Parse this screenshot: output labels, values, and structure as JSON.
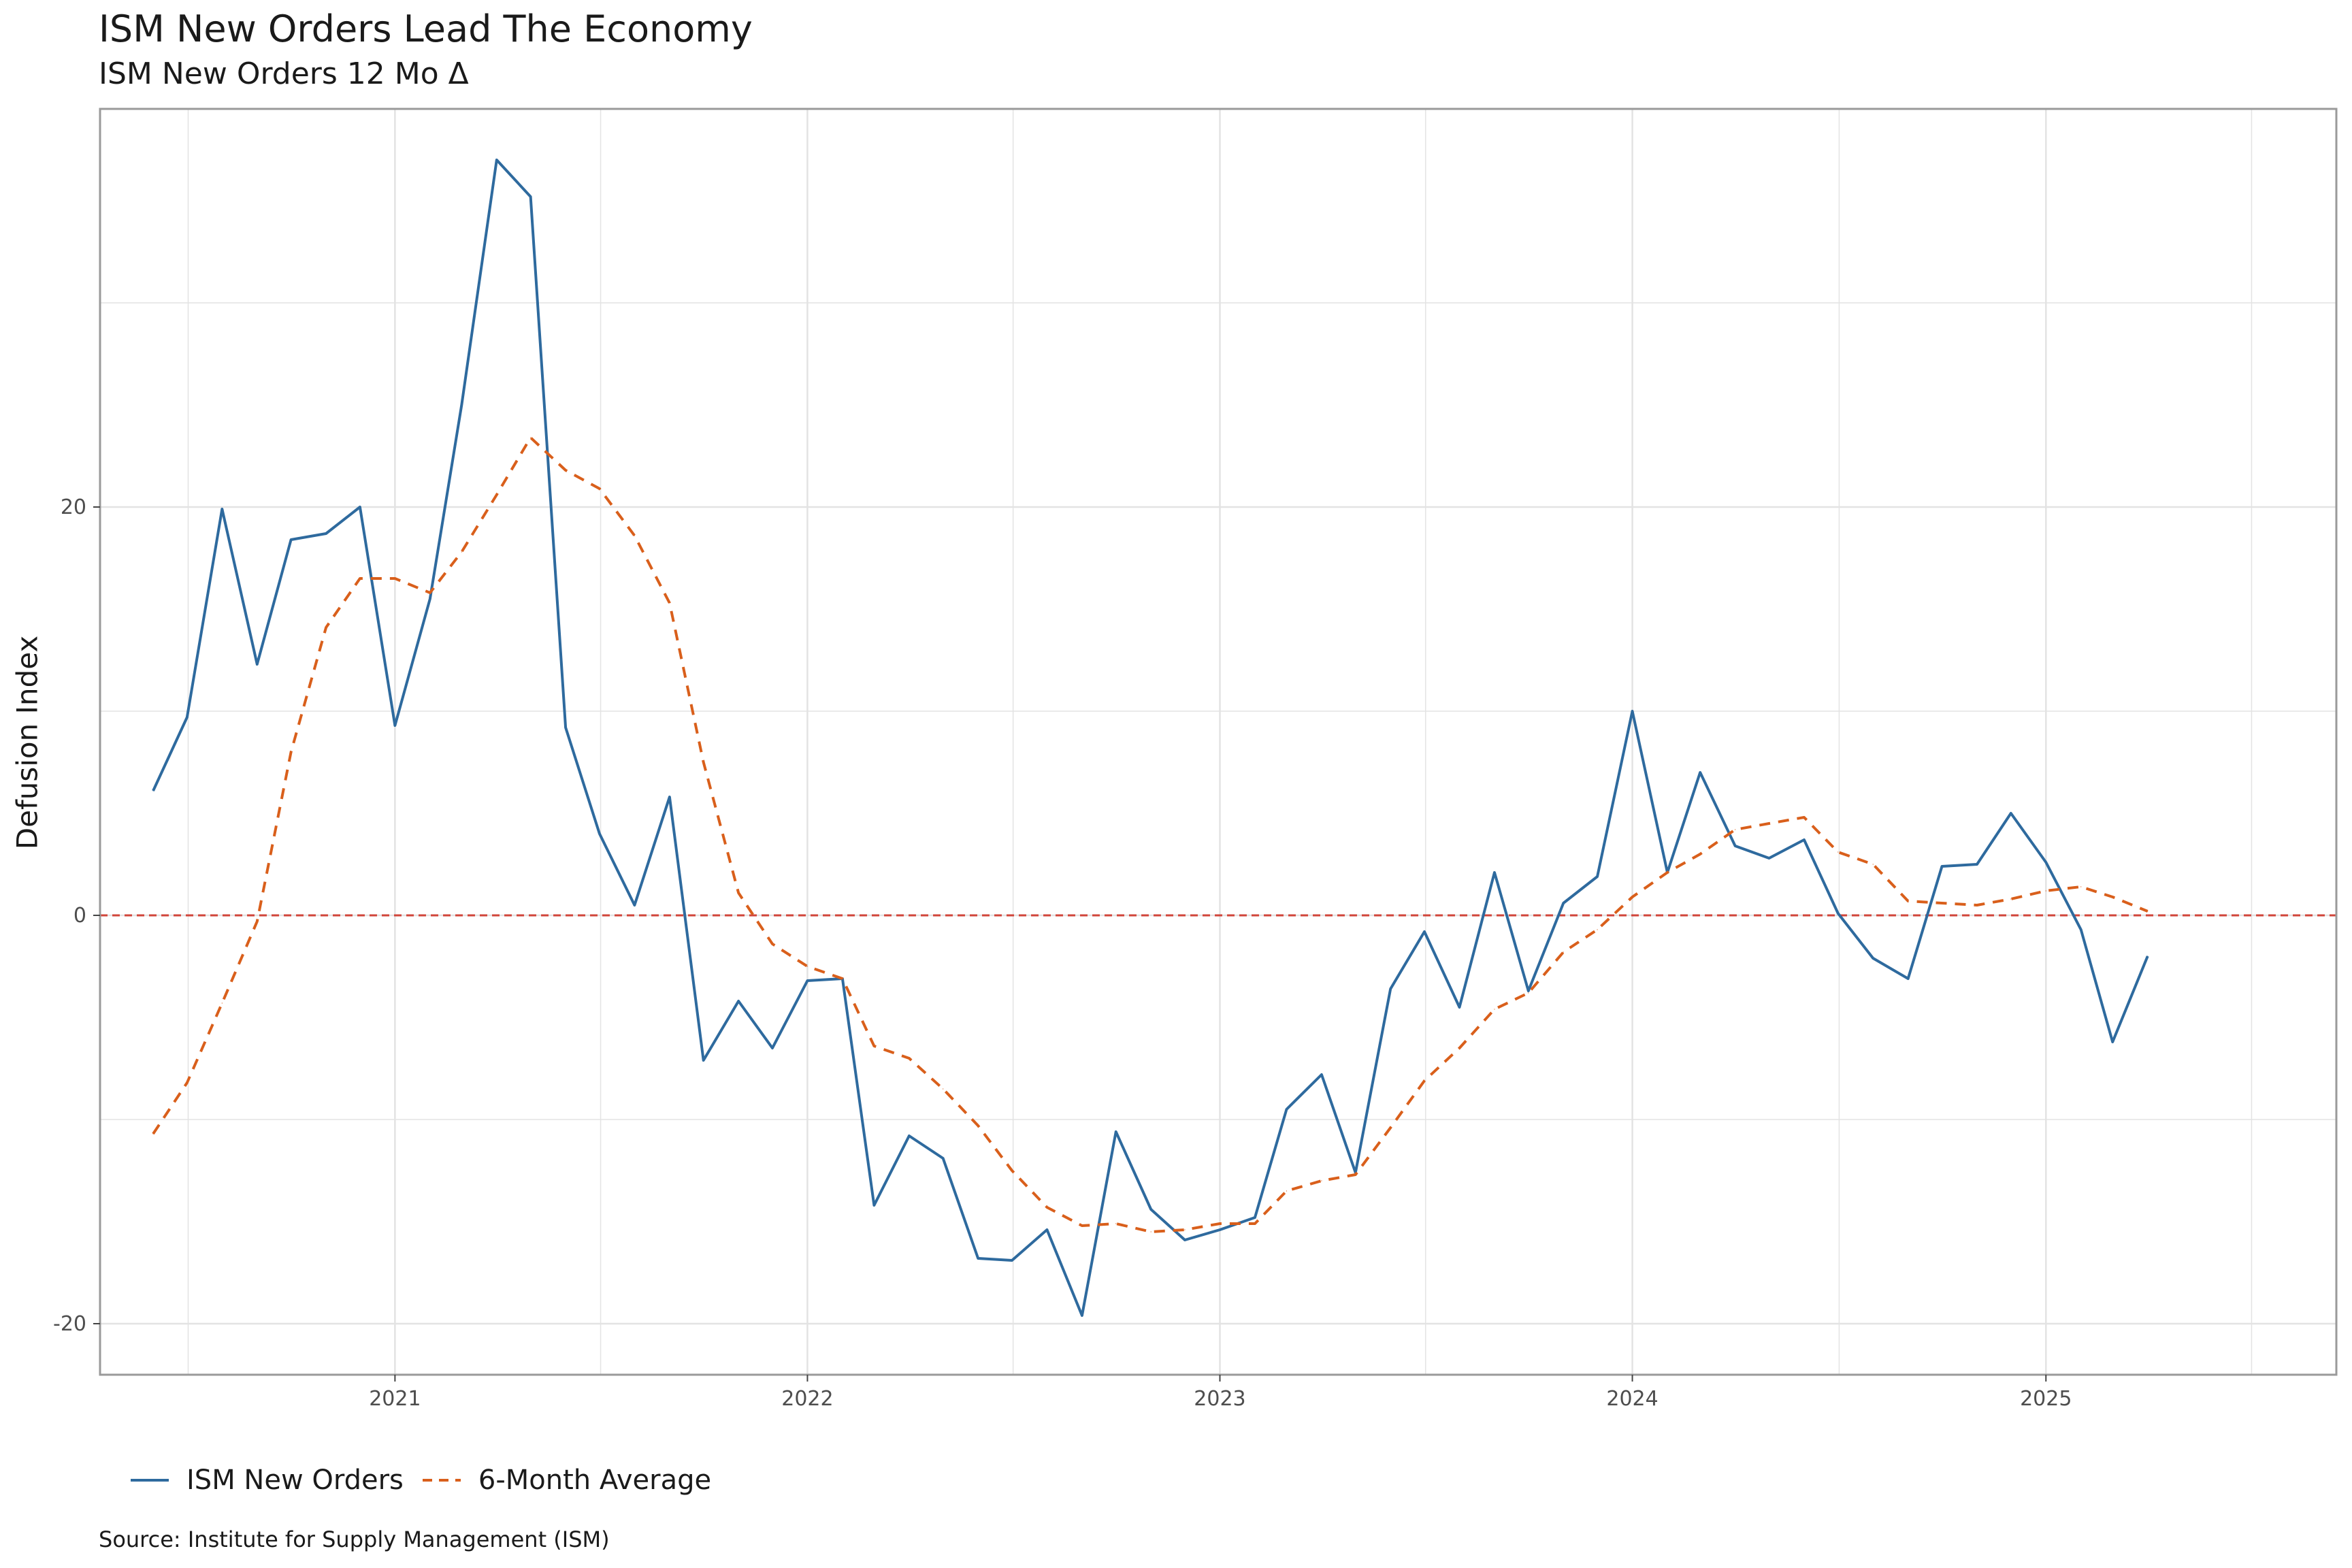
{
  "title": "ISM New Orders Lead The Economy",
  "subtitle": "ISM New Orders 12 Mo Δ",
  "caption": "Source: Institute for Supply Management (ISM)",
  "colors": {
    "series_main": "#2E6A9E",
    "series_avg": "#D95F1B",
    "zero_line": "#D0453A",
    "grid": "#E3E3E3",
    "panel_border": "#9A9A9A",
    "background": "#FFFFFF"
  },
  "legend": {
    "position": "bottom-left",
    "items": [
      {
        "label": "ISM New Orders",
        "linetype": "solid",
        "color": "#2E6A9E"
      },
      {
        "label": "6-Month Average",
        "linetype": "dashed",
        "color": "#D95F1B"
      }
    ]
  },
  "chart_data": {
    "type": "line",
    "title": "ISM New Orders Lead The Economy",
    "subtitle": "ISM New Orders 12 Mo Δ",
    "xlabel": "",
    "ylabel": "Defusion Index",
    "grid": true,
    "xlim": [
      "2020-04-15",
      "2025-09-15"
    ],
    "ylim": [
      -22.5,
      39.5
    ],
    "x_ticks": [
      "2021-01-01",
      "2022-01-01",
      "2023-01-01",
      "2024-01-01",
      "2025-01-01"
    ],
    "x_tick_labels": [
      "2021",
      "2022",
      "2023",
      "2024",
      "2025"
    ],
    "y_ticks": [
      -20,
      0,
      20
    ],
    "y_tick_labels": [
      "-20",
      "0",
      "20"
    ],
    "reference_line": {
      "y": 0,
      "style": "dashed",
      "color": "#D0453A"
    },
    "x": [
      "2020-06",
      "2020-07",
      "2020-08",
      "2020-09",
      "2020-10",
      "2020-11",
      "2020-12",
      "2021-01",
      "2021-02",
      "2021-03",
      "2021-04",
      "2021-05",
      "2021-06",
      "2021-07",
      "2021-08",
      "2021-09",
      "2021-10",
      "2021-11",
      "2021-12",
      "2022-01",
      "2022-02",
      "2022-03",
      "2022-04",
      "2022-05",
      "2022-06",
      "2022-07",
      "2022-08",
      "2022-09",
      "2022-10",
      "2022-11",
      "2022-12",
      "2023-01",
      "2023-02",
      "2023-03",
      "2023-04",
      "2023-05",
      "2023-06",
      "2023-07",
      "2023-08",
      "2023-09",
      "2023-10",
      "2023-11",
      "2023-12",
      "2024-01",
      "2024-02",
      "2024-03",
      "2024-04",
      "2024-05",
      "2024-06",
      "2024-07",
      "2024-08",
      "2024-09",
      "2024-10",
      "2024-11",
      "2024-12",
      "2025-01",
      "2025-02",
      "2025-03",
      "2025-04"
    ],
    "series": [
      {
        "name": "ISM New Orders",
        "style": "solid",
        "color": "#2E6A9E",
        "values": [
          6.1,
          9.7,
          19.9,
          12.3,
          18.4,
          18.7,
          20.0,
          9.3,
          15.5,
          25.0,
          37.0,
          35.2,
          9.2,
          4.0,
          0.5,
          5.8,
          -7.1,
          -4.2,
          -6.5,
          -3.2,
          -3.1,
          -14.2,
          -10.8,
          -11.9,
          -16.8,
          -16.9,
          -15.4,
          -19.6,
          -10.6,
          -14.4,
          -15.9,
          -15.4,
          -14.8,
          -9.5,
          -7.8,
          -12.6,
          -3.6,
          -0.8,
          -4.5,
          2.1,
          -3.7,
          0.6,
          1.9,
          10.0,
          2.1,
          7.0,
          3.4,
          2.8,
          3.7,
          0.1,
          -2.1,
          -3.1,
          2.4,
          2.5,
          5.0,
          2.6,
          -0.7,
          -6.2,
          -2.0
        ]
      },
      {
        "name": "6-Month Average",
        "style": "dashed",
        "color": "#D95F1B",
        "values": [
          -10.7,
          -8.2,
          -4.3,
          -0.3,
          8.0,
          14.1,
          16.5,
          16.5,
          15.8,
          17.8,
          20.6,
          23.4,
          21.8,
          20.9,
          18.6,
          15.3,
          7.5,
          1.1,
          -1.4,
          -2.5,
          -3.1,
          -6.4,
          -7.0,
          -8.5,
          -10.3,
          -12.5,
          -14.3,
          -15.2,
          -15.1,
          -15.5,
          -15.4,
          -15.1,
          -15.1,
          -13.5,
          -13.0,
          -12.7,
          -10.4,
          -8.1,
          -6.5,
          -4.6,
          -3.8,
          -1.8,
          -0.7,
          0.9,
          2.1,
          3.0,
          4.2,
          4.5,
          4.8,
          3.1,
          2.5,
          0.7,
          0.6,
          0.5,
          0.8,
          1.2,
          1.4,
          0.9,
          0.2
        ]
      }
    ]
  }
}
